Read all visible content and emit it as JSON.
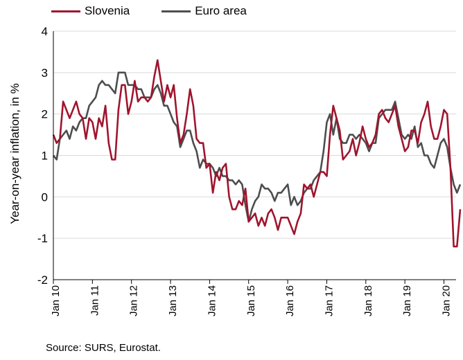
{
  "chart_data": {
    "type": "line",
    "title": "",
    "xlabel": "",
    "ylabel": "Year-on-year inflation, in %",
    "ylim": [
      -2,
      4
    ],
    "yticks": [
      4,
      3,
      2,
      1,
      0,
      -1,
      -2
    ],
    "x_tick_labels": [
      "Jan 10",
      "Jan 11",
      "Jan 12",
      "Jan 13",
      "Jan 14",
      "Jan 15",
      "Jan 16",
      "Jan 17",
      "Jan 18",
      "Jan 19",
      "Jan 20"
    ],
    "x_start": "2010-01",
    "x_end": "2020-06",
    "grid": true,
    "legend_position": "top-left",
    "source": "Source: SURS, Eurostat.",
    "series": [
      {
        "name": "Slovenia",
        "color": "#a0142d",
        "values": [
          1.5,
          1.3,
          1.4,
          2.3,
          2.1,
          1.9,
          2.1,
          2.3,
          2.0,
          1.9,
          1.4,
          1.9,
          1.8,
          1.4,
          1.9,
          1.7,
          2.2,
          1.3,
          0.9,
          0.9,
          2.1,
          2.7,
          2.7,
          2.0,
          2.3,
          2.8,
          2.3,
          2.4,
          2.4,
          2.3,
          2.4,
          2.9,
          3.3,
          2.8,
          2.3,
          2.7,
          2.4,
          2.7,
          1.9,
          1.3,
          1.5,
          2.0,
          2.6,
          2.2,
          1.4,
          1.3,
          1.3,
          0.7,
          0.8,
          0.1,
          0.6,
          0.4,
          0.7,
          0.8,
          0.0,
          -0.3,
          -0.3,
          -0.1,
          -0.2,
          0.2,
          -0.6,
          -0.5,
          -0.4,
          -0.7,
          -0.5,
          -0.7,
          -0.4,
          -0.3,
          -0.5,
          -0.8,
          -0.5,
          -0.5,
          -0.5,
          -0.7,
          -0.9,
          -0.6,
          -0.4,
          0.3,
          0.2,
          0.3,
          0.0,
          0.3,
          0.6,
          0.6,
          0.5,
          1.5,
          2.2,
          1.9,
          1.6,
          0.9,
          1.0,
          1.1,
          1.4,
          1.0,
          1.3,
          1.7,
          1.4,
          1.2,
          1.3,
          1.5,
          2.0,
          2.1,
          1.9,
          1.8,
          2.0,
          2.2,
          1.7,
          1.4,
          1.1,
          1.2,
          1.6,
          1.6,
          1.3,
          1.8,
          2.0,
          2.3,
          1.7,
          1.4,
          1.4,
          1.7,
          2.1,
          2.0,
          0.7,
          -1.2,
          -1.2,
          -0.3
        ]
      },
      {
        "name": "Euro area",
        "color": "#4d4d4f",
        "values": [
          1.0,
          0.9,
          1.4,
          1.5,
          1.6,
          1.4,
          1.7,
          1.6,
          1.8,
          1.9,
          1.9,
          2.2,
          2.3,
          2.4,
          2.7,
          2.8,
          2.7,
          2.7,
          2.6,
          2.5,
          3.0,
          3.0,
          3.0,
          2.7,
          2.7,
          2.7,
          2.6,
          2.6,
          2.4,
          2.4,
          2.4,
          2.6,
          2.7,
          2.5,
          2.2,
          2.2,
          2.0,
          1.8,
          1.7,
          1.2,
          1.4,
          1.6,
          1.6,
          1.3,
          1.1,
          0.7,
          0.9,
          0.8,
          0.8,
          0.7,
          0.5,
          0.7,
          0.5,
          0.5,
          0.4,
          0.4,
          0.3,
          0.4,
          0.3,
          -0.2,
          -0.6,
          -0.3,
          -0.1,
          0.0,
          0.3,
          0.2,
          0.2,
          0.1,
          -0.1,
          0.1,
          0.1,
          0.2,
          0.3,
          -0.2,
          0.0,
          -0.2,
          -0.1,
          0.1,
          0.2,
          0.2,
          0.4,
          0.5,
          0.6,
          1.1,
          1.8,
          2.0,
          1.5,
          1.9,
          1.4,
          1.3,
          1.3,
          1.5,
          1.5,
          1.4,
          1.5,
          1.4,
          1.3,
          1.1,
          1.3,
          1.3,
          1.9,
          2.0,
          2.1,
          2.1,
          2.1,
          2.3,
          1.9,
          1.5,
          1.4,
          1.5,
          1.4,
          1.7,
          1.2,
          1.3,
          1.0,
          1.0,
          0.8,
          0.7,
          1.0,
          1.3,
          1.4,
          1.2,
          0.7,
          0.3,
          0.1,
          0.3
        ]
      }
    ]
  }
}
